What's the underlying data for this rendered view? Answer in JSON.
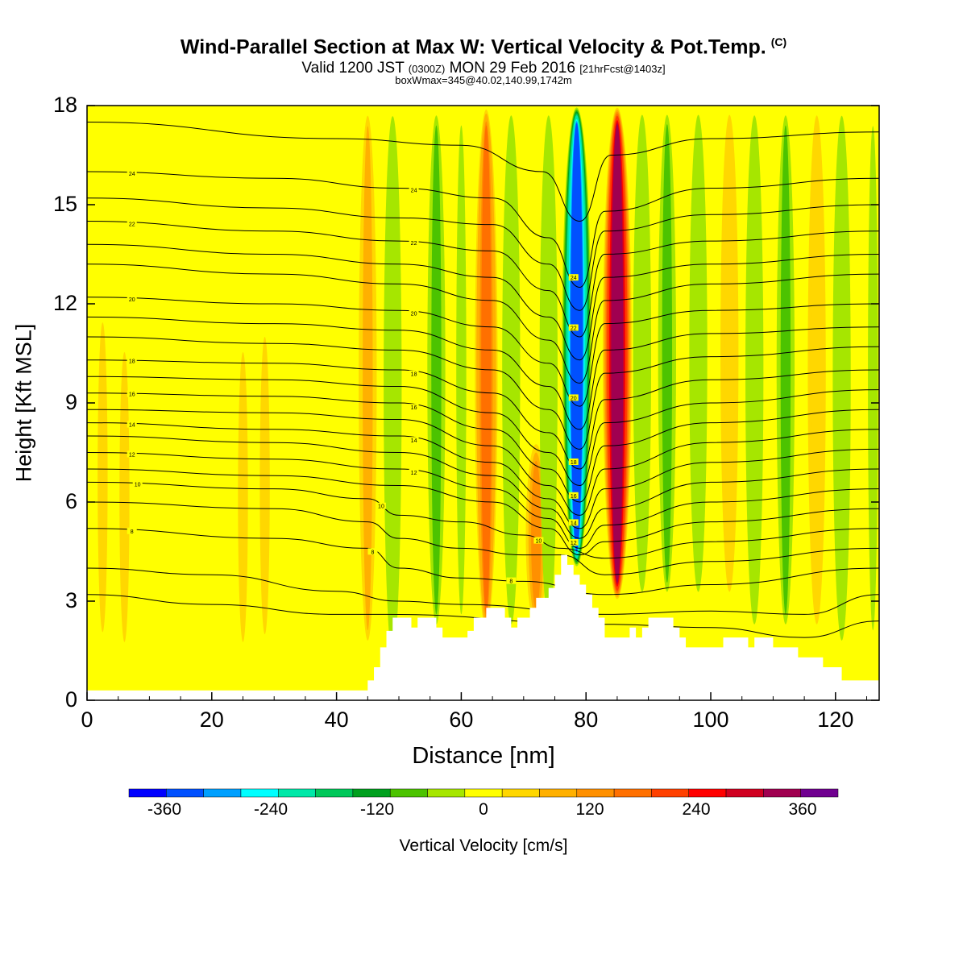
{
  "header": {
    "title": "Wind-Parallel Section at Max W: Vertical Velocity & Pot.Temp.",
    "copyright": "(C)",
    "valid_prefix": "Valid 1200 JST",
    "valid_utc": "(0300Z)",
    "valid_date": "MON 29 Feb 2016",
    "forecast": "[21hrFcst@1403z]",
    "boxinfo": "boxWmax=345@40.02,140.99,1742m"
  },
  "chart_data": {
    "type": "heatmap",
    "title": "Wind-Parallel Section at Max W: Vertical Velocity & Pot.Temp.",
    "xlabel": "Distance [nm]",
    "ylabel": "Height [Kft MSL]",
    "xlim": [
      0,
      127
    ],
    "ylim": [
      0,
      18
    ],
    "x_ticks": [
      "0",
      "20",
      "40",
      "60",
      "80",
      "100",
      "120"
    ],
    "y_ticks": [
      "0",
      "3",
      "6",
      "9",
      "12",
      "15",
      "18"
    ],
    "colorbar": {
      "label": "Vertical Velocity [cm/s]",
      "tick_labels": [
        "-360",
        "-240",
        "-120",
        "0",
        "120",
        "240",
        "360"
      ],
      "ticks": [
        -360,
        -240,
        -120,
        0,
        120,
        240,
        360
      ],
      "range": [
        -400,
        400
      ],
      "colors": [
        "#0000ff",
        "#0050ff",
        "#00a0ff",
        "#00ffff",
        "#00e8a8",
        "#00c85a",
        "#00a01e",
        "#4cc300",
        "#a6e600",
        "#ffff00",
        "#ffd700",
        "#ffb000",
        "#ff9000",
        "#ff7000",
        "#ff4000",
        "#ff0000",
        "#d00020",
        "#a00050",
        "#700090"
      ]
    },
    "contour_labels": [
      "24",
      "22",
      "20",
      "18",
      "16",
      "14",
      "12",
      "10",
      "8"
    ],
    "w_columns": [
      {
        "x": 2.5,
        "w": 40,
        "bottom": 0.5,
        "top": 13
      },
      {
        "x": 6,
        "w": 30,
        "bottom": 0.3,
        "top": 12
      },
      {
        "x": 25,
        "w": 40,
        "bottom": 0.3,
        "top": 12
      },
      {
        "x": 28.5,
        "w": 30,
        "bottom": 0.5,
        "top": 12.5
      },
      {
        "x": 45,
        "w": 70,
        "bottom": 1.5,
        "top": 18
      },
      {
        "x": 49,
        "w": -50,
        "bottom": 1,
        "top": 18
      },
      {
        "x": 56,
        "w": -70,
        "bottom": 2,
        "top": 18
      },
      {
        "x": 60,
        "w": -40,
        "bottom": 2,
        "top": 18
      },
      {
        "x": 64,
        "w": 170,
        "bottom": 2,
        "top": 18
      },
      {
        "x": 68,
        "w": -60,
        "bottom": 2,
        "top": 18
      },
      {
        "x": 72,
        "w": 110,
        "bottom": 2,
        "top": 8
      },
      {
        "x": 74,
        "w": -60,
        "bottom": 2,
        "top": 18
      },
      {
        "x": 78.5,
        "w": -345,
        "bottom": 4,
        "top": 18
      },
      {
        "x": 85,
        "w": 345,
        "bottom": 3,
        "top": 18
      },
      {
        "x": 89,
        "w": -60,
        "bottom": 3,
        "top": 18
      },
      {
        "x": 93,
        "w": -80,
        "bottom": 3,
        "top": 18
      },
      {
        "x": 98,
        "w": -60,
        "bottom": 3,
        "top": 18
      },
      {
        "x": 103,
        "w": 60,
        "bottom": 3,
        "top": 18
      },
      {
        "x": 107,
        "w": -50,
        "bottom": 2,
        "top": 18
      },
      {
        "x": 112,
        "w": -70,
        "bottom": 2,
        "top": 18
      },
      {
        "x": 117,
        "w": 50,
        "bottom": 2,
        "top": 18
      },
      {
        "x": 121,
        "w": -60,
        "bottom": 1.5,
        "top": 18
      },
      {
        "x": 126,
        "w": -40,
        "bottom": 1.5,
        "top": 18
      }
    ],
    "terrain": [
      [
        0,
        0.3
      ],
      [
        44,
        0.3
      ],
      [
        45,
        0.6
      ],
      [
        46,
        1.0
      ],
      [
        47,
        1.6
      ],
      [
        48,
        2.1
      ],
      [
        49,
        2.5
      ],
      [
        51,
        2.5
      ],
      [
        52,
        2.2
      ],
      [
        53,
        2.5
      ],
      [
        55,
        2.5
      ],
      [
        56,
        2.2
      ],
      [
        57,
        1.9
      ],
      [
        60,
        1.9
      ],
      [
        61,
        2.1
      ],
      [
        62,
        2.5
      ],
      [
        64,
        2.8
      ],
      [
        66,
        2.8
      ],
      [
        67,
        2.5
      ],
      [
        68,
        2.2
      ],
      [
        69,
        2.5
      ],
      [
        71,
        2.8
      ],
      [
        72,
        3.1
      ],
      [
        74,
        3.4
      ],
      [
        75,
        3.8
      ],
      [
        76,
        4.4
      ],
      [
        77,
        4.1
      ],
      [
        78,
        3.8
      ],
      [
        79,
        3.5
      ],
      [
        80,
        3.2
      ],
      [
        81,
        2.8
      ],
      [
        82,
        2.5
      ],
      [
        83,
        1.9
      ],
      [
        86,
        1.9
      ],
      [
        87,
        2.2
      ],
      [
        88,
        1.9
      ],
      [
        89,
        2.2
      ],
      [
        90,
        2.5
      ],
      [
        92,
        2.5
      ],
      [
        94,
        2.2
      ],
      [
        95,
        1.9
      ],
      [
        96,
        1.6
      ],
      [
        101,
        1.6
      ],
      [
        102,
        1.9
      ],
      [
        104,
        1.9
      ],
      [
        106,
        1.6
      ],
      [
        107,
        1.9
      ],
      [
        109,
        1.9
      ],
      [
        110,
        1.6
      ],
      [
        113,
        1.6
      ],
      [
        114,
        1.3
      ],
      [
        117,
        1.3
      ],
      [
        118,
        1.0
      ],
      [
        120,
        1.0
      ],
      [
        121,
        0.6
      ],
      [
        126,
        0.6
      ],
      [
        127,
        0.3
      ]
    ],
    "isentropes": [
      {
        "label": "",
        "points": [
          [
            0,
            17.5
          ],
          [
            40,
            17.0
          ],
          [
            60,
            16.8
          ],
          [
            73,
            16.0
          ],
          [
            79,
            14.5
          ],
          [
            84,
            16.5
          ],
          [
            100,
            17.0
          ],
          [
            127,
            17.2
          ]
        ]
      },
      {
        "label": "24",
        "points": [
          [
            0,
            16.0
          ],
          [
            30,
            15.8
          ],
          [
            50,
            15.5
          ],
          [
            65,
            15.2
          ],
          [
            74,
            14.0
          ],
          [
            79,
            12.5
          ],
          [
            83,
            14.8
          ],
          [
            100,
            15.5
          ],
          [
            127,
            15.8
          ]
        ]
      },
      {
        "label": "",
        "points": [
          [
            0,
            15.2
          ],
          [
            30,
            14.9
          ],
          [
            50,
            14.6
          ],
          [
            65,
            14.4
          ],
          [
            74,
            13.2
          ],
          [
            79,
            11.8
          ],
          [
            83,
            14.2
          ],
          [
            100,
            14.7
          ],
          [
            127,
            15.0
          ]
        ]
      },
      {
        "label": "22",
        "points": [
          [
            0,
            14.5
          ],
          [
            30,
            14.2
          ],
          [
            50,
            13.9
          ],
          [
            65,
            13.6
          ],
          [
            74,
            12.4
          ],
          [
            79,
            11.0
          ],
          [
            83,
            13.5
          ],
          [
            100,
            13.9
          ],
          [
            127,
            14.2
          ]
        ]
      },
      {
        "label": "",
        "points": [
          [
            0,
            13.8
          ],
          [
            30,
            13.5
          ],
          [
            50,
            13.2
          ],
          [
            65,
            12.8
          ],
          [
            74,
            11.6
          ],
          [
            79,
            10.3
          ],
          [
            83,
            12.8
          ],
          [
            100,
            13.2
          ],
          [
            127,
            13.5
          ]
        ]
      },
      {
        "label": "",
        "points": [
          [
            0,
            13.2
          ],
          [
            30,
            12.9
          ],
          [
            50,
            12.6
          ],
          [
            65,
            12.1
          ],
          [
            74,
            10.9
          ],
          [
            79,
            9.6
          ],
          [
            83,
            12.1
          ],
          [
            100,
            12.6
          ],
          [
            127,
            12.9
          ]
        ]
      },
      {
        "label": "20",
        "points": [
          [
            0,
            12.2
          ],
          [
            30,
            12.0
          ],
          [
            50,
            11.8
          ],
          [
            65,
            11.3
          ],
          [
            74,
            10.2
          ],
          [
            79,
            8.9
          ],
          [
            83,
            11.4
          ],
          [
            100,
            11.8
          ],
          [
            127,
            12.0
          ]
        ]
      },
      {
        "label": "",
        "points": [
          [
            0,
            11.6
          ],
          [
            30,
            11.4
          ],
          [
            50,
            11.2
          ],
          [
            65,
            10.6
          ],
          [
            74,
            9.5
          ],
          [
            79,
            8.2
          ],
          [
            83,
            10.6
          ],
          [
            100,
            11.1
          ],
          [
            127,
            11.3
          ]
        ]
      },
      {
        "label": "",
        "points": [
          [
            0,
            11.0
          ],
          [
            30,
            10.8
          ],
          [
            50,
            10.6
          ],
          [
            65,
            10.0
          ],
          [
            74,
            8.8
          ],
          [
            79,
            7.6
          ],
          [
            83,
            9.9
          ],
          [
            100,
            10.4
          ],
          [
            127,
            10.7
          ]
        ]
      },
      {
        "label": "18",
        "points": [
          [
            0,
            10.3
          ],
          [
            30,
            10.2
          ],
          [
            50,
            10.0
          ],
          [
            65,
            9.3
          ],
          [
            74,
            8.1
          ],
          [
            79,
            7.0
          ],
          [
            83,
            9.1
          ],
          [
            100,
            9.7
          ],
          [
            127,
            10.0
          ]
        ]
      },
      {
        "label": "",
        "points": [
          [
            0,
            9.8
          ],
          [
            30,
            9.7
          ],
          [
            50,
            9.5
          ],
          [
            65,
            8.7
          ],
          [
            74,
            7.5
          ],
          [
            79,
            6.5
          ],
          [
            83,
            8.4
          ],
          [
            100,
            9.0
          ],
          [
            127,
            9.4
          ]
        ]
      },
      {
        "label": "16",
        "points": [
          [
            0,
            9.3
          ],
          [
            30,
            9.2
          ],
          [
            50,
            9.0
          ],
          [
            65,
            8.2
          ],
          [
            74,
            7.0
          ],
          [
            79,
            6.0
          ],
          [
            83,
            7.7
          ],
          [
            100,
            8.4
          ],
          [
            127,
            8.8
          ]
        ]
      },
      {
        "label": "",
        "points": [
          [
            0,
            8.8
          ],
          [
            30,
            8.7
          ],
          [
            50,
            8.5
          ],
          [
            65,
            7.7
          ],
          [
            74,
            6.5
          ],
          [
            79,
            5.6
          ],
          [
            83,
            7.0
          ],
          [
            100,
            7.8
          ],
          [
            127,
            8.2
          ]
        ]
      },
      {
        "label": "14",
        "points": [
          [
            0,
            8.4
          ],
          [
            30,
            8.2
          ],
          [
            50,
            8.0
          ],
          [
            65,
            7.2
          ],
          [
            74,
            6.1
          ],
          [
            79,
            5.2
          ],
          [
            83,
            6.4
          ],
          [
            100,
            7.2
          ],
          [
            127,
            7.6
          ]
        ]
      },
      {
        "label": "",
        "points": [
          [
            0,
            8.0
          ],
          [
            30,
            7.8
          ],
          [
            50,
            7.5
          ],
          [
            65,
            6.8
          ],
          [
            74,
            5.8
          ],
          [
            79,
            4.9
          ],
          [
            83,
            5.8
          ],
          [
            100,
            6.6
          ],
          [
            127,
            7.0
          ]
        ]
      },
      {
        "label": "12",
        "points": [
          [
            0,
            7.5
          ],
          [
            30,
            7.3
          ],
          [
            50,
            7.0
          ],
          [
            65,
            6.4
          ],
          [
            74,
            5.5
          ],
          [
            79,
            4.6
          ],
          [
            83,
            5.3
          ],
          [
            100,
            6.0
          ],
          [
            127,
            6.4
          ]
        ]
      },
      {
        "label": "",
        "points": [
          [
            0,
            7.0
          ],
          [
            30,
            6.8
          ],
          [
            50,
            6.5
          ],
          [
            65,
            6.0
          ],
          [
            74,
            5.2
          ],
          [
            79,
            4.4
          ],
          [
            83,
            4.8
          ],
          [
            100,
            5.4
          ],
          [
            127,
            5.8
          ]
        ]
      },
      {
        "label": "10",
        "points": [
          [
            0,
            6.6
          ],
          [
            30,
            6.4
          ],
          [
            45,
            6.1
          ],
          [
            50,
            5.6
          ],
          [
            60,
            5.4
          ],
          [
            70,
            5.0
          ],
          [
            76,
            4.6
          ],
          [
            83,
            4.3
          ],
          [
            100,
            4.8
          ],
          [
            127,
            5.2
          ]
        ]
      },
      {
        "label": "",
        "points": [
          [
            0,
            6.0
          ],
          [
            30,
            5.8
          ],
          [
            45,
            5.4
          ],
          [
            50,
            4.9
          ],
          [
            60,
            4.6
          ],
          [
            70,
            4.4
          ],
          [
            76,
            4.4
          ],
          [
            83,
            3.8
          ],
          [
            100,
            4.2
          ],
          [
            127,
            4.6
          ]
        ]
      },
      {
        "label": "8",
        "points": [
          [
            0,
            5.2
          ],
          [
            30,
            4.9
          ],
          [
            45,
            4.6
          ],
          [
            50,
            4.0
          ],
          [
            60,
            3.7
          ],
          [
            70,
            3.6
          ],
          [
            83,
            3.2
          ],
          [
            100,
            3.5
          ],
          [
            127,
            4.0
          ]
        ]
      },
      {
        "label": "",
        "points": [
          [
            0,
            4.0
          ],
          [
            20,
            3.8
          ],
          [
            40,
            3.3
          ],
          [
            50,
            3.0
          ],
          [
            60,
            2.9
          ],
          [
            83,
            2.6
          ],
          [
            100,
            2.7
          ],
          [
            115,
            2.6
          ],
          [
            127,
            3.2
          ]
        ]
      },
      {
        "label": "",
        "points": [
          [
            0,
            3.2
          ],
          [
            20,
            2.9
          ],
          [
            40,
            2.6
          ],
          [
            48,
            2.6
          ],
          [
            83,
            2.3
          ],
          [
            100,
            2.2
          ],
          [
            115,
            1.9
          ],
          [
            127,
            2.4
          ]
        ]
      }
    ]
  }
}
